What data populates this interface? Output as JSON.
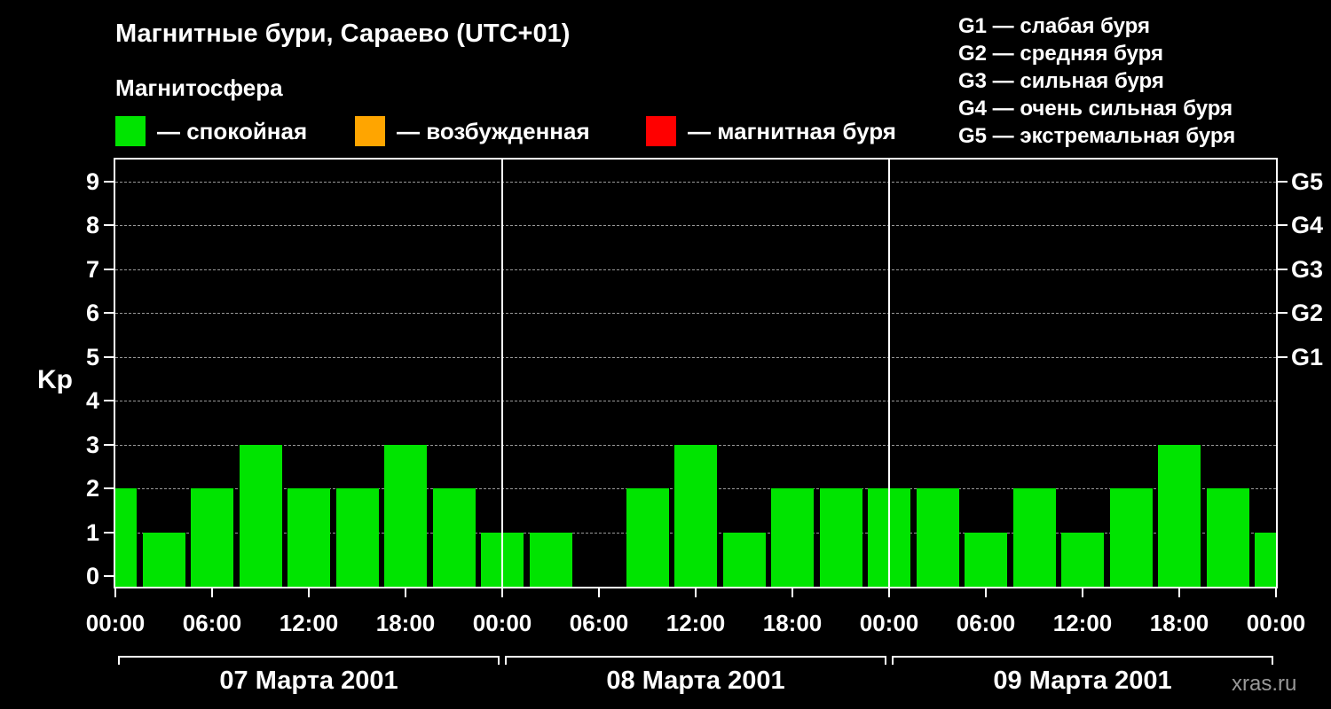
{
  "header": {
    "title": "Магнитные бури, Сараево (UTC+01)",
    "subtitle": "Магнитосфера"
  },
  "legend": {
    "items": [
      {
        "label": "— спокойная",
        "color": "#00e400"
      },
      {
        "label": "— возбужденная",
        "color": "#ffa500"
      },
      {
        "label": "— магнитная буря",
        "color": "#ff0000"
      }
    ]
  },
  "storm_scale": {
    "items": [
      "G1 — слабая буря",
      "G2 — средняя буря",
      "G3 — сильная буря",
      "G4 — очень сильная буря",
      "G5 — экстремальная буря"
    ]
  },
  "chart_data": {
    "type": "bar",
    "title": "Магнитные бури, Сараево (UTC+01)",
    "ylabel": "Kp",
    "ylim": [
      0,
      9.7
    ],
    "y_ticks": [
      0,
      1,
      2,
      3,
      4,
      5,
      6,
      7,
      8,
      9
    ],
    "grid_levels": [
      1,
      2,
      3,
      4,
      5,
      6,
      7,
      8,
      9
    ],
    "right_axis_labels": [
      {
        "label": "G1",
        "kp": 5
      },
      {
        "label": "G2",
        "kp": 6
      },
      {
        "label": "G3",
        "kp": 7
      },
      {
        "label": "G4",
        "kp": 8
      },
      {
        "label": "G5",
        "kp": 9
      }
    ],
    "bar_color": "#00e400",
    "interval_hours": 3,
    "total_hours": 72,
    "x_hours": [
      0,
      3,
      6,
      9,
      12,
      15,
      18,
      21,
      24,
      27,
      30,
      33,
      36,
      39,
      42,
      45,
      48,
      51,
      54,
      57,
      60,
      63,
      66,
      69,
      72
    ],
    "values": [
      2,
      1,
      2,
      3,
      2,
      2,
      3,
      2,
      1,
      1,
      0,
      2,
      3,
      1,
      2,
      2,
      2,
      2,
      1,
      2,
      1,
      2,
      3,
      2,
      1
    ],
    "x_tick_labels": [
      {
        "hour": 0,
        "label": "00:00"
      },
      {
        "hour": 6,
        "label": "06:00"
      },
      {
        "hour": 12,
        "label": "12:00"
      },
      {
        "hour": 18,
        "label": "18:00"
      },
      {
        "hour": 24,
        "label": "00:00"
      },
      {
        "hour": 30,
        "label": "06:00"
      },
      {
        "hour": 36,
        "label": "12:00"
      },
      {
        "hour": 42,
        "label": "18:00"
      },
      {
        "hour": 48,
        "label": "00:00"
      },
      {
        "hour": 54,
        "label": "06:00"
      },
      {
        "hour": 60,
        "label": "12:00"
      },
      {
        "hour": 66,
        "label": "18:00"
      },
      {
        "hour": 72,
        "label": "00:00"
      }
    ],
    "day_separators_hours": [
      24,
      48
    ],
    "days": [
      {
        "label": "07 Марта 2001",
        "start_hour": 0,
        "end_hour": 24
      },
      {
        "label": "08 Марта 2001",
        "start_hour": 24,
        "end_hour": 48
      },
      {
        "label": "09 Марта 2001",
        "start_hour": 48,
        "end_hour": 72
      }
    ]
  },
  "watermark": "xras.ru",
  "colors": {
    "background": "#000000",
    "frame": "#ffffff",
    "text": "#ffffff",
    "grid": "#aaaaaa",
    "watermark": "#999999"
  }
}
